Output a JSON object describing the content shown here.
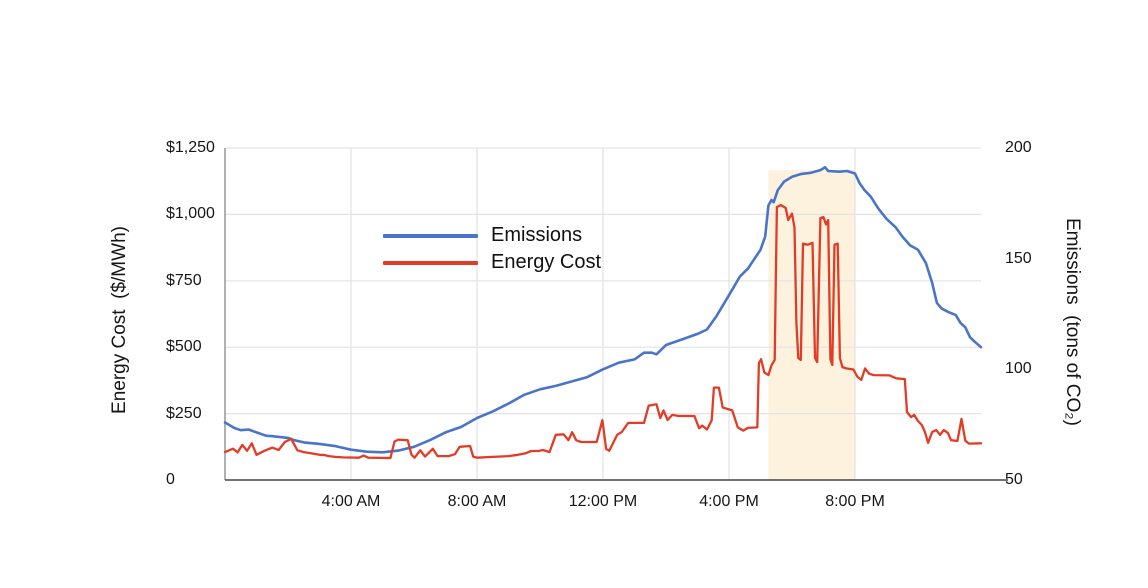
{
  "chart_data": {
    "type": "line",
    "title": "",
    "grid": "on",
    "legend_position": "inside-upper-middle",
    "x_axis": {
      "min_hour": 0,
      "max_hour": 24,
      "tick_labels": [
        "4:00 AM",
        "8:00 AM",
        "12:00 PM",
        "4:00 PM",
        "8:00 PM"
      ],
      "tick_hours": [
        4,
        8,
        12,
        16,
        20
      ],
      "origin_label": "0"
    },
    "left_axis": {
      "title": "Energy Cost  ($/MWh)",
      "min": 0,
      "max": 1250,
      "ticks": [
        "$1,250",
        "$1,000",
        "$750",
        "$500",
        "$250",
        "0"
      ],
      "grid_values": [
        1250,
        1000,
        750,
        500,
        250
      ]
    },
    "right_axis": {
      "title": "Emissions  (tons of CO₂)",
      "min": 50,
      "max": 200,
      "ticks": [
        "200",
        "150",
        "100",
        "50"
      ]
    },
    "highlight_region": {
      "start_hour": 17.25,
      "end_hour": 20.0,
      "top_value": 190,
      "color": "#fcf2dd"
    },
    "series": [
      {
        "name": "Emissions",
        "axis": "right",
        "unit": "tons of CO2",
        "color": "#4a74c9",
        "width": 2.6,
        "points": [
          [
            0,
            76
          ],
          [
            0.3,
            73.5
          ],
          [
            0.5,
            72.5
          ],
          [
            0.75,
            72.8
          ],
          [
            1,
            71.5
          ],
          [
            1.3,
            70
          ],
          [
            1.5,
            69.8
          ],
          [
            2,
            69
          ],
          [
            2.2,
            68
          ],
          [
            2.5,
            67
          ],
          [
            3,
            66.3
          ],
          [
            3.5,
            65.3
          ],
          [
            4,
            63.7
          ],
          [
            4.5,
            62.8
          ],
          [
            5,
            62.5
          ],
          [
            5.5,
            63.3
          ],
          [
            6,
            65
          ],
          [
            6.5,
            68
          ],
          [
            7,
            71.5
          ],
          [
            7.5,
            74
          ],
          [
            8,
            78
          ],
          [
            8.5,
            81
          ],
          [
            9,
            84.5
          ],
          [
            9.5,
            88.5
          ],
          [
            10,
            91
          ],
          [
            10.5,
            92.5
          ],
          [
            11,
            94.5
          ],
          [
            11.5,
            96.5
          ],
          [
            12,
            100
          ],
          [
            12.5,
            103
          ],
          [
            13,
            104.5
          ],
          [
            13.3,
            107.5
          ],
          [
            13.55,
            107.5
          ],
          [
            13.7,
            106.8
          ],
          [
            14,
            111
          ],
          [
            14.5,
            113.5
          ],
          [
            15,
            116
          ],
          [
            15.3,
            118
          ],
          [
            15.6,
            124
          ],
          [
            16,
            133.5
          ],
          [
            16.35,
            142
          ],
          [
            16.6,
            145.5
          ],
          [
            17,
            154
          ],
          [
            17.15,
            160
          ],
          [
            17.25,
            174
          ],
          [
            17.35,
            176.5
          ],
          [
            17.42,
            175.5
          ],
          [
            17.55,
            181
          ],
          [
            17.75,
            184.8
          ],
          [
            18,
            187
          ],
          [
            18.3,
            188.3
          ],
          [
            18.6,
            188.8
          ],
          [
            18.9,
            190
          ],
          [
            19.05,
            191.3
          ],
          [
            19.15,
            189.6
          ],
          [
            19.5,
            189.3
          ],
          [
            19.75,
            189.6
          ],
          [
            20,
            188.5
          ],
          [
            20.15,
            184
          ],
          [
            20.3,
            181
          ],
          [
            20.5,
            178
          ],
          [
            20.75,
            172.5
          ],
          [
            21,
            168
          ],
          [
            21.3,
            164
          ],
          [
            21.5,
            160
          ],
          [
            21.75,
            156
          ],
          [
            22,
            154
          ],
          [
            22.25,
            148
          ],
          [
            22.45,
            139
          ],
          [
            22.6,
            130
          ],
          [
            22.75,
            127.5
          ],
          [
            22.95,
            126
          ],
          [
            23.2,
            124.5
          ],
          [
            23.35,
            121
          ],
          [
            23.5,
            119
          ],
          [
            23.65,
            114.5
          ],
          [
            23.8,
            112.5
          ],
          [
            24,
            110
          ]
        ]
      },
      {
        "name": "Energy Cost",
        "axis": "left",
        "unit": "$/MWh",
        "color": "#e23c26",
        "width": 2.3,
        "points": [
          [
            0,
            105
          ],
          [
            0.25,
            118
          ],
          [
            0.4,
            104
          ],
          [
            0.55,
            132
          ],
          [
            0.7,
            110
          ],
          [
            0.85,
            138
          ],
          [
            1,
            95
          ],
          [
            1.25,
            110
          ],
          [
            1.5,
            122
          ],
          [
            1.7,
            113
          ],
          [
            1.9,
            143
          ],
          [
            2.1,
            155
          ],
          [
            2.3,
            112
          ],
          [
            2.5,
            105
          ],
          [
            2.75,
            100
          ],
          [
            3,
            95
          ],
          [
            3.15,
            94
          ],
          [
            3.3,
            90
          ],
          [
            3.5,
            87
          ],
          [
            3.75,
            85
          ],
          [
            4.25,
            84
          ],
          [
            4.4,
            92
          ],
          [
            4.55,
            84
          ],
          [
            5.25,
            83
          ],
          [
            5.38,
            145
          ],
          [
            5.5,
            152
          ],
          [
            5.8,
            150
          ],
          [
            5.92,
            95
          ],
          [
            6.02,
            84
          ],
          [
            6.2,
            112
          ],
          [
            6.35,
            88
          ],
          [
            6.6,
            118
          ],
          [
            6.75,
            90
          ],
          [
            7.1,
            90
          ],
          [
            7.3,
            97
          ],
          [
            7.45,
            125
          ],
          [
            7.78,
            128
          ],
          [
            7.88,
            88
          ],
          [
            8,
            84
          ],
          [
            8.5,
            87
          ],
          [
            9,
            90
          ],
          [
            9.3,
            95
          ],
          [
            9.55,
            101
          ],
          [
            9.72,
            109
          ],
          [
            9.95,
            109
          ],
          [
            10.1,
            113
          ],
          [
            10.3,
            105
          ],
          [
            10.5,
            170
          ],
          [
            10.75,
            172
          ],
          [
            10.9,
            150
          ],
          [
            11.02,
            180
          ],
          [
            11.15,
            150
          ],
          [
            11.3,
            143
          ],
          [
            11.8,
            143
          ],
          [
            11.98,
            225
          ],
          [
            12.1,
            117
          ],
          [
            12.2,
            110
          ],
          [
            12.45,
            170
          ],
          [
            12.6,
            181
          ],
          [
            12.8,
            215
          ],
          [
            13.3,
            215
          ],
          [
            13.45,
            280
          ],
          [
            13.7,
            285
          ],
          [
            13.82,
            233
          ],
          [
            13.92,
            262
          ],
          [
            14.05,
            226
          ],
          [
            14.2,
            245
          ],
          [
            14.4,
            241
          ],
          [
            14.9,
            241
          ],
          [
            15.05,
            195
          ],
          [
            15.15,
            205
          ],
          [
            15.3,
            190
          ],
          [
            15.45,
            225
          ],
          [
            15.52,
            348
          ],
          [
            15.68,
            348
          ],
          [
            15.8,
            273
          ],
          [
            16.1,
            262
          ],
          [
            16.28,
            198
          ],
          [
            16.45,
            186
          ],
          [
            16.6,
            196
          ],
          [
            16.9,
            198
          ],
          [
            16.95,
            440
          ],
          [
            17.02,
            455
          ],
          [
            17.12,
            405
          ],
          [
            17.25,
            395
          ],
          [
            17.35,
            432
          ],
          [
            17.45,
            452
          ],
          [
            17.48,
            700
          ],
          [
            17.52,
            1028
          ],
          [
            17.65,
            1035
          ],
          [
            17.8,
            1024
          ],
          [
            17.88,
            979
          ],
          [
            18,
            1003
          ],
          [
            18.08,
            950
          ],
          [
            18.14,
            590
          ],
          [
            18.2,
            459
          ],
          [
            18.28,
            452
          ],
          [
            18.35,
            890
          ],
          [
            18.5,
            886
          ],
          [
            18.65,
            893
          ],
          [
            18.73,
            460
          ],
          [
            18.8,
            444
          ],
          [
            18.9,
            986
          ],
          [
            19,
            990
          ],
          [
            19.08,
            962
          ],
          [
            19.15,
            978
          ],
          [
            19.22,
            455
          ],
          [
            19.28,
            433
          ],
          [
            19.35,
            886
          ],
          [
            19.45,
            890
          ],
          [
            19.52,
            460
          ],
          [
            19.6,
            425
          ],
          [
            19.72,
            420
          ],
          [
            19.95,
            416
          ],
          [
            20.08,
            388
          ],
          [
            20.2,
            377
          ],
          [
            20.32,
            420
          ],
          [
            20.45,
            400
          ],
          [
            20.6,
            395
          ],
          [
            21.1,
            394
          ],
          [
            21.3,
            383
          ],
          [
            21.58,
            380
          ],
          [
            21.65,
            256
          ],
          [
            21.78,
            237
          ],
          [
            21.88,
            245
          ],
          [
            22,
            222
          ],
          [
            22.12,
            207
          ],
          [
            22.22,
            181
          ],
          [
            22.32,
            140
          ],
          [
            22.45,
            181
          ],
          [
            22.58,
            188
          ],
          [
            22.7,
            170
          ],
          [
            22.82,
            188
          ],
          [
            22.95,
            177
          ],
          [
            23.05,
            150
          ],
          [
            23.25,
            147
          ],
          [
            23.38,
            230
          ],
          [
            23.5,
            148
          ],
          [
            23.62,
            137
          ],
          [
            24,
            138
          ]
        ]
      }
    ]
  }
}
